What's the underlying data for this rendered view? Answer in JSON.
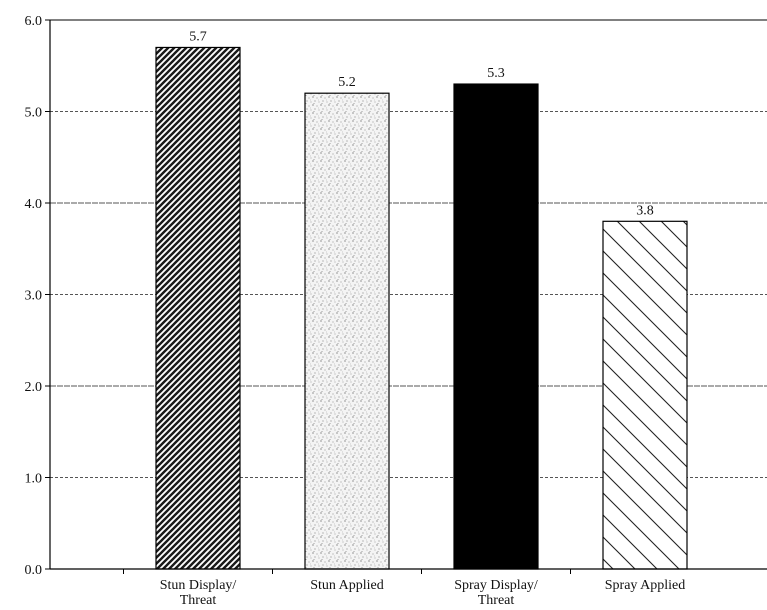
{
  "chart_data": {
    "type": "bar",
    "categories": [
      [
        "Stun Display/",
        "Threat"
      ],
      [
        "Stun Applied"
      ],
      [
        "Spray Display/",
        "Threat"
      ],
      [
        "Spray Applied"
      ]
    ],
    "values": [
      5.7,
      5.2,
      5.3,
      3.8
    ],
    "value_labels": [
      "5.7",
      "5.2",
      "5.3",
      "3.8"
    ],
    "bar_fills": [
      "dense-diagonal-hatch",
      "stipple",
      "solid-black",
      "wide-diagonal-hatch"
    ],
    "ylim": [
      0,
      6
    ],
    "y_ticks": [
      "0.0",
      "1.0",
      "2.0",
      "3.0",
      "4.0",
      "5.0",
      "6.0"
    ],
    "grid": true,
    "title": "",
    "xlabel": "",
    "ylabel": ""
  }
}
